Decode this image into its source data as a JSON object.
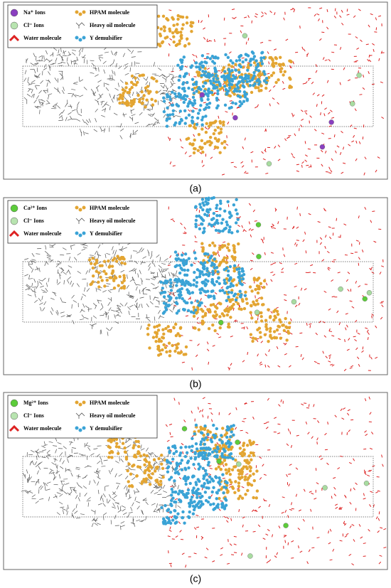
{
  "panels": [
    {
      "legend": [
        "Na⁺ Ions",
        "Cl⁻ Ions",
        "Water molecule",
        "HPAM molecule",
        "Heavy oil molecule",
        "Y demulsifier"
      ],
      "caption": "(a)"
    },
    {
      "legend": [
        "Ca²⁺ Ions",
        "Cl⁻ Ions",
        "Water molecule",
        "HPAM molecule",
        "Heavy oil molecule",
        "Y demulsifier"
      ],
      "caption": "(b)"
    },
    {
      "legend": [
        "Mg²⁺ Ions",
        "Cl⁻ Ions",
        "Water molecule",
        "HPAM molecule",
        "Heavy oil molecule",
        "Y demulsifier"
      ],
      "caption": "(c)"
    }
  ]
}
